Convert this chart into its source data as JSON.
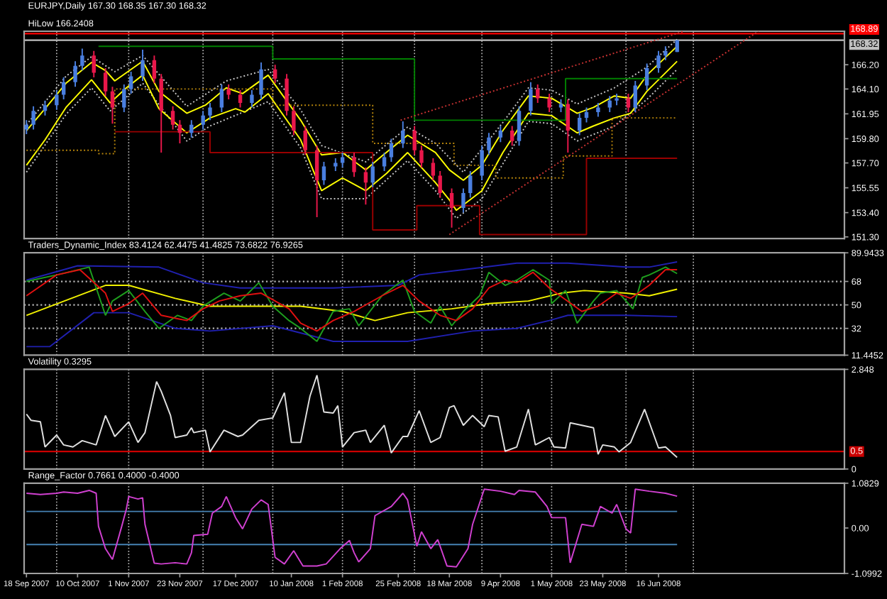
{
  "chart_data": [
    {
      "type": "candlestick",
      "title": "EURJPY,Daily 167.30 168.35 167.30 168.32",
      "subtitle": "HiLow 166.2408",
      "x": [
        "2007-09-18",
        "2007-09-21",
        "2007-09-26",
        "2007-10-01",
        "2007-10-04",
        "2007-10-09",
        "2007-10-12",
        "2007-10-17",
        "2007-10-22",
        "2007-10-25",
        "2007-10-30",
        "2007-11-02",
        "2007-11-07",
        "2007-11-12",
        "2007-11-15",
        "2007-11-20",
        "2007-11-23",
        "2007-11-28",
        "2007-12-03",
        "2007-12-06",
        "2007-12-11",
        "2007-12-14",
        "2007-12-19",
        "2007-12-24",
        "2007-12-28",
        "2008-01-03",
        "2008-01-08",
        "2008-01-11",
        "2008-01-16",
        "2008-01-21",
        "2008-01-24",
        "2008-01-29",
        "2008-02-01",
        "2008-02-06",
        "2008-02-11",
        "2008-02-14",
        "2008-02-19",
        "2008-02-22",
        "2008-02-27",
        "2008-03-03",
        "2008-03-06",
        "2008-03-11",
        "2008-03-14",
        "2008-03-19",
        "2008-03-24",
        "2008-03-27",
        "2008-04-01",
        "2008-04-04",
        "2008-04-09",
        "2008-04-14",
        "2008-04-17",
        "2008-04-22",
        "2008-04-25",
        "2008-04-30",
        "2008-05-05",
        "2008-05-08",
        "2008-05-13",
        "2008-05-16",
        "2008-05-21",
        "2008-05-26",
        "2008-05-29",
        "2008-06-03",
        "2008-06-06",
        "2008-06-11",
        "2008-06-16",
        "2008-06-19",
        "2008-06-24"
      ],
      "ohlc": [
        [
          160.6,
          161.4,
          160.2,
          161.0
        ],
        [
          161.0,
          162.6,
          160.6,
          162.2
        ],
        [
          162.2,
          163.1,
          161.8,
          162.7
        ],
        [
          162.7,
          164.0,
          162.3,
          163.6
        ],
        [
          163.6,
          165.1,
          163.2,
          164.7
        ],
        [
          164.7,
          166.5,
          164.3,
          166.1
        ],
        [
          166.1,
          167.6,
          165.7,
          167.0
        ],
        [
          167.0,
          167.4,
          165.1,
          165.5
        ],
        [
          165.5,
          165.9,
          163.5,
          163.9
        ],
        [
          163.9,
          164.3,
          161.1,
          162.5
        ],
        [
          162.5,
          164.5,
          162.1,
          164.1
        ],
        [
          164.1,
          165.6,
          163.7,
          165.2
        ],
        [
          165.2,
          167.5,
          164.8,
          166.6
        ],
        [
          166.6,
          167.0,
          164.6,
          165.0
        ],
        [
          165.0,
          165.4,
          158.6,
          162.2
        ],
        [
          162.2,
          162.6,
          160.6,
          161.0
        ],
        [
          161.0,
          161.4,
          159.4,
          160.3
        ],
        [
          160.3,
          161.4,
          159.9,
          161.0
        ],
        [
          161.0,
          162.2,
          160.6,
          161.8
        ],
        [
          161.8,
          162.9,
          161.4,
          162.5
        ],
        [
          162.5,
          164.5,
          162.1,
          164.1
        ],
        [
          164.1,
          164.5,
          163.2,
          163.6
        ],
        [
          163.6,
          164.0,
          162.5,
          162.9
        ],
        [
          162.9,
          164.0,
          162.5,
          163.6
        ],
        [
          163.6,
          166.4,
          163.2,
          165.8
        ],
        [
          165.8,
          166.2,
          164.6,
          165.0
        ],
        [
          165.0,
          165.4,
          161.8,
          162.2
        ],
        [
          162.2,
          162.6,
          160.1,
          160.5
        ],
        [
          160.5,
          160.9,
          158.4,
          158.8
        ],
        [
          158.8,
          159.2,
          153.0,
          156.2
        ],
        [
          156.2,
          157.8,
          155.8,
          157.4
        ],
        [
          157.4,
          158.1,
          157.0,
          157.7
        ],
        [
          157.7,
          158.6,
          157.3,
          158.2
        ],
        [
          158.2,
          158.6,
          156.5,
          156.9
        ],
        [
          156.9,
          157.3,
          154.1,
          156.0
        ],
        [
          156.0,
          157.8,
          155.6,
          157.4
        ],
        [
          157.4,
          158.6,
          157.0,
          158.2
        ],
        [
          158.2,
          159.8,
          157.8,
          159.4
        ],
        [
          159.4,
          161.3,
          159.0,
          160.5
        ],
        [
          160.5,
          160.9,
          158.4,
          158.8
        ],
        [
          158.8,
          159.2,
          157.3,
          157.7
        ],
        [
          157.7,
          158.1,
          156.2,
          156.6
        ],
        [
          156.6,
          157.0,
          154.7,
          155.1
        ],
        [
          155.1,
          155.5,
          152.1,
          153.8
        ],
        [
          153.8,
          155.5,
          153.4,
          155.1
        ],
        [
          155.1,
          157.0,
          154.7,
          156.6
        ],
        [
          156.6,
          159.2,
          156.2,
          158.8
        ],
        [
          158.8,
          160.3,
          158.4,
          159.9
        ],
        [
          159.9,
          160.9,
          159.5,
          160.5
        ],
        [
          160.5,
          160.9,
          159.2,
          159.6
        ],
        [
          159.6,
          162.6,
          159.2,
          162.2
        ],
        [
          162.2,
          164.7,
          161.8,
          164.1
        ],
        [
          164.1,
          164.5,
          162.9,
          163.3
        ],
        [
          163.3,
          163.7,
          162.1,
          162.5
        ],
        [
          162.5,
          163.2,
          162.1,
          162.8
        ],
        [
          162.8,
          163.2,
          158.6,
          160.5
        ],
        [
          160.5,
          162.0,
          160.1,
          161.6
        ],
        [
          161.6,
          162.5,
          161.2,
          162.1
        ],
        [
          162.1,
          162.9,
          161.7,
          162.5
        ],
        [
          162.5,
          163.5,
          162.1,
          163.1
        ],
        [
          163.1,
          163.7,
          162.7,
          163.3
        ],
        [
          163.3,
          163.7,
          162.1,
          162.5
        ],
        [
          162.5,
          164.8,
          162.1,
          164.4
        ],
        [
          164.4,
          166.3,
          164.0,
          165.9
        ],
        [
          165.9,
          167.4,
          165.5,
          167.0
        ],
        [
          167.0,
          167.8,
          166.6,
          167.4
        ],
        [
          167.3,
          168.35,
          167.3,
          168.32
        ]
      ],
      "colors": [
        "#4a7fe0",
        "#4a7fe0",
        "#4a7fe0",
        "#4a7fe0",
        "#4a7fe0",
        "#4a7fe0",
        "#4a7fe0",
        "#e8174a",
        "#e8174a",
        "#e8174a",
        "#4a7fe0",
        "#4a7fe0",
        "#4a7fe0",
        "#e8174a",
        "#e8174a",
        "#e8174a",
        "#e8174a",
        "#4a7fe0",
        "#4a7fe0",
        "#4a7fe0",
        "#4a7fe0",
        "#e8174a",
        "#e8174a",
        "#4a7fe0",
        "#4a7fe0",
        "#e8174a",
        "#e8174a",
        "#e8174a",
        "#e8174a",
        "#e8174a",
        "#4a7fe0",
        "#4a7fe0",
        "#4a7fe0",
        "#e8174a",
        "#e8174a",
        "#4a7fe0",
        "#4a7fe0",
        "#4a7fe0",
        "#4a7fe0",
        "#e8174a",
        "#e8174a",
        "#e8174a",
        "#e8174a",
        "#e8174a",
        "#4a7fe0",
        "#4a7fe0",
        "#4a7fe0",
        "#4a7fe0",
        "#4a7fe0",
        "#e8174a",
        "#4a7fe0",
        "#4a7fe0",
        "#e8174a",
        "#e8174a",
        "#4a7fe0",
        "#e8174a",
        "#4a7fe0",
        "#4a7fe0",
        "#4a7fe0",
        "#4a7fe0",
        "#4a7fe0",
        "#e8174a",
        "#4a7fe0",
        "#4a7fe0",
        "#4a7fe0",
        "#4a7fe0",
        "#4a7fe0"
      ],
      "series": [
        {
          "type": "line",
          "color": "#c8c8c8",
          "line_style": "dotted",
          "x": [
            "2007-09-18",
            "2007-10-05",
            "2007-10-16",
            "2007-10-26",
            "2007-11-07",
            "2007-11-26",
            "2007-12-13",
            "2007-12-31",
            "2008-01-14",
            "2008-01-23",
            "2008-02-11",
            "2008-02-29",
            "2008-03-12",
            "2008-03-24",
            "2008-04-10",
            "2008-04-21",
            "2008-05-01",
            "2008-05-12",
            "2008-05-28",
            "2008-06-11",
            "2008-06-24"
          ],
          "values": [
            161.0,
            165.2,
            166.9,
            165.6,
            167.0,
            162.6,
            164.8,
            165.8,
            162.3,
            159.2,
            157.8,
            160.8,
            159.4,
            156.9,
            161.2,
            164.2,
            164.0,
            162.8,
            164.2,
            166.0,
            168.4
          ]
        },
        {
          "type": "line",
          "color": "#c8c8c8",
          "line_style": "dotted",
          "x": [
            "2007-09-18",
            "2007-10-05",
            "2007-10-16",
            "2007-10-24",
            "2007-11-07",
            "2007-11-26",
            "2007-12-06",
            "2007-12-31",
            "2008-01-14",
            "2008-01-23",
            "2008-02-11",
            "2008-02-29",
            "2008-03-12",
            "2008-03-21",
            "2008-04-01",
            "2008-04-21",
            "2008-05-01",
            "2008-05-12",
            "2008-05-28",
            "2008-06-11",
            "2008-06-24"
          ],
          "values": [
            156.9,
            161.9,
            164.2,
            162.2,
            164.6,
            159.6,
            160.9,
            163.0,
            159.0,
            154.6,
            154.6,
            157.9,
            155.3,
            152.9,
            154.6,
            161.3,
            161.1,
            159.6,
            160.9,
            163.2,
            165.8
          ]
        },
        {
          "type": "line",
          "color": "#ffff00",
          "x": [
            "2007-09-18",
            "2007-09-26",
            "2007-10-05",
            "2007-10-16",
            "2007-10-22",
            "2007-10-26",
            "2007-11-07",
            "2007-11-14",
            "2007-11-26",
            "2007-12-04",
            "2007-12-13",
            "2007-12-20",
            "2007-12-31",
            "2008-01-14",
            "2008-01-23",
            "2008-02-01",
            "2008-02-11",
            "2008-02-18",
            "2008-02-29",
            "2008-03-12",
            "2008-03-18",
            "2008-03-24",
            "2008-04-01",
            "2008-04-10",
            "2008-04-21",
            "2008-05-01",
            "2008-05-12",
            "2008-05-19",
            "2008-05-28",
            "2008-06-04",
            "2008-06-11",
            "2008-06-24"
          ],
          "values": [
            160.5,
            162.4,
            164.6,
            166.4,
            165.7,
            164.8,
            166.5,
            163.9,
            162.0,
            162.7,
            164.2,
            163.7,
            165.3,
            161.4,
            158.4,
            158.6,
            157.1,
            158.3,
            160.1,
            158.6,
            157.1,
            156.2,
            157.5,
            160.5,
            163.5,
            163.3,
            162.0,
            162.5,
            163.5,
            163.3,
            165.3,
            167.8
          ]
        },
        {
          "type": "line",
          "color": "#ffff00",
          "x": [
            "2007-09-18",
            "2007-09-26",
            "2007-10-05",
            "2007-10-16",
            "2007-10-24",
            "2007-10-31",
            "2007-11-07",
            "2007-11-14",
            "2007-11-26",
            "2007-12-06",
            "2007-12-17",
            "2007-12-21",
            "2007-12-31",
            "2008-01-14",
            "2008-01-23",
            "2008-02-01",
            "2008-02-11",
            "2008-02-20",
            "2008-02-29",
            "2008-03-12",
            "2008-03-18",
            "2008-03-21",
            "2008-04-01",
            "2008-04-10",
            "2008-04-21",
            "2008-05-01",
            "2008-05-12",
            "2008-05-19",
            "2008-05-28",
            "2008-06-04",
            "2008-06-11",
            "2008-06-24"
          ],
          "values": [
            157.5,
            159.7,
            162.5,
            164.9,
            162.9,
            164.2,
            165.3,
            162.4,
            160.3,
            161.6,
            162.4,
            162.1,
            163.7,
            159.7,
            155.3,
            156.4,
            155.3,
            156.8,
            158.6,
            156.0,
            154.5,
            153.6,
            155.3,
            158.6,
            162.0,
            161.8,
            160.3,
            160.9,
            161.6,
            162.0,
            163.9,
            166.5
          ]
        },
        {
          "type": "step",
          "color": "#008000",
          "x": [
            "2007-10-19",
            "2008-01-02",
            "2008-03-03",
            "2008-05-07",
            "2008-06-24"
          ],
          "values": [
            167.8,
            166.7,
            161.4,
            165.0,
            165.0
          ]
        },
        {
          "type": "step",
          "color": "#990000",
          "x": [
            "2007-10-26",
            "2007-12-06",
            "2008-02-14",
            "2008-03-04",
            "2008-03-31",
            "2008-05-16",
            "2008-06-24"
          ],
          "values": [
            160.4,
            158.6,
            151.9,
            154.0,
            151.5,
            158.1,
            158.1
          ]
        },
        {
          "type": "step",
          "color": "#b8860b",
          "line_style": "dotted",
          "x": [
            "2007-09-18",
            "2007-10-19",
            "2007-10-26",
            "2008-01-02",
            "2008-02-14",
            "2008-03-20",
            "2008-04-07",
            "2008-05-06",
            "2008-05-27",
            "2008-06-24"
          ],
          "values": [
            158.8,
            158.5,
            164.1,
            162.7,
            159.4,
            157.5,
            156.4,
            158.3,
            161.6,
            161.6
          ]
        },
        {
          "type": "line",
          "color": "#cc3333",
          "line_style": "dotted",
          "x": [
            "2008-02-26",
            "2008-06-27"
          ],
          "values": [
            161.4,
            169.1
          ]
        },
        {
          "type": "line",
          "color": "#cc3333",
          "line_style": "dotted",
          "x": [
            "2008-03-18",
            "2008-07-29"
          ],
          "values": [
            151.5,
            169.1
          ]
        }
      ],
      "xlim": [
        "2007-09-17",
        "2008-09-04"
      ],
      "ylim": [
        151.15,
        169.1
      ],
      "yticks": [
        {
          "value": 166.2,
          "label": "166.20"
        },
        {
          "value": 164.1,
          "label": "164.10"
        },
        161.95,
        {
          "value": 159.8,
          "label": "159.80"
        },
        {
          "value": 157.7,
          "label": "157.70"
        },
        155.55,
        {
          "value": 153.4,
          "label": "153.40"
        },
        {
          "value": 151.3,
          "label": "151.30"
        }
      ],
      "tick_labels": "y",
      "ref_lines": [
        {
          "axis": "y",
          "value": 168.89,
          "label": "168.89",
          "color": "#ff0000"
        },
        {
          "axis": "y",
          "value": 168.32,
          "label": "168.32",
          "color": "#c0c0c0"
        },
        {
          "axis": "x",
          "value": "2007-10-01",
          "color": "#b4b4b4",
          "line_style": "dotted"
        },
        {
          "axis": "x",
          "value": "2007-11-01",
          "color": "#b4b4b4",
          "line_style": "dotted"
        },
        {
          "axis": "x",
          "value": "2007-12-03",
          "color": "#b4b4b4",
          "line_style": "dotted"
        },
        {
          "axis": "x",
          "value": "2008-01-02",
          "color": "#b4b4b4",
          "line_style": "dotted"
        },
        {
          "axis": "x",
          "value": "2008-02-01",
          "color": "#b4b4b4",
          "line_style": "dotted"
        },
        {
          "axis": "x",
          "value": "2008-03-03",
          "color": "#b4b4b4",
          "line_style": "dotted"
        },
        {
          "axis": "x",
          "value": "2008-04-01",
          "color": "#b4b4b4",
          "line_style": "dotted"
        },
        {
          "axis": "x",
          "value": "2008-05-01",
          "color": "#b4b4b4",
          "line_style": "dotted"
        },
        {
          "axis": "x",
          "value": "2008-06-02",
          "color": "#b4b4b4",
          "line_style": "dotted"
        },
        {
          "axis": "x",
          "value": "2008-07-01",
          "color": "#b4b4b4",
          "line_style": "dotted"
        }
      ]
    },
    {
      "type": "line",
      "title": "Traders_Dynamic_Index 83.4124 62.4475 41.4825 73.6822 76.9265",
      "series": [
        {
          "color": "#2020b0",
          "x": [
            "2007-09-18",
            "2007-10-10",
            "2007-11-14",
            "2007-12-03",
            "2007-12-19",
            "2008-01-28",
            "2008-02-25",
            "2008-03-05",
            "2008-03-24",
            "2008-04-16",
            "2008-05-08",
            "2008-06-02",
            "2008-06-12",
            "2008-06-24"
          ],
          "values": [
            69,
            80,
            79,
            67,
            63,
            63,
            65,
            73,
            77,
            82,
            82,
            79,
            79,
            83
          ]
        },
        {
          "color": "#2020b0",
          "x": [
            "2007-09-18",
            "2007-09-28",
            "2007-10-17",
            "2007-11-01",
            "2007-11-21",
            "2007-12-06",
            "2008-01-02",
            "2008-01-28",
            "2008-02-29",
            "2008-03-28",
            "2008-04-16",
            "2008-04-30",
            "2008-05-08",
            "2008-06-02",
            "2008-06-24"
          ],
          "values": [
            18,
            18,
            44,
            44,
            32,
            30,
            34,
            22,
            22,
            30,
            32,
            38,
            42,
            42,
            41
          ]
        },
        {
          "color": "#f0f000",
          "x": [
            "2007-09-18",
            "2007-10-22",
            "2007-11-01",
            "2007-11-21",
            "2007-12-06",
            "2008-01-02",
            "2008-01-14",
            "2008-02-01",
            "2008-02-15",
            "2008-02-29",
            "2008-03-19",
            "2008-04-04",
            "2008-04-21",
            "2008-05-05",
            "2008-05-15",
            "2008-06-02",
            "2008-06-12",
            "2008-06-24"
          ],
          "values": [
            42,
            65,
            65,
            55,
            49,
            49,
            49,
            45,
            38,
            44,
            47,
            51,
            53,
            59,
            61,
            59,
            57,
            62
          ]
        },
        {
          "color": "#1e9e1e",
          "x": [
            "2007-09-18",
            "2007-10-01",
            "2007-10-15",
            "2007-10-22",
            "2007-10-25",
            "2007-11-01",
            "2007-11-08",
            "2007-11-14",
            "2007-11-22",
            "2007-11-28",
            "2007-12-03",
            "2007-12-12",
            "2007-12-19",
            "2007-12-27",
            "2008-01-02",
            "2008-01-09",
            "2008-01-14",
            "2008-01-21",
            "2008-01-28",
            "2008-02-04",
            "2008-02-08",
            "2008-02-18",
            "2008-02-27",
            "2008-03-03",
            "2008-03-10",
            "2008-03-14",
            "2008-03-19",
            "2008-03-24",
            "2008-03-31",
            "2008-04-04",
            "2008-04-11",
            "2008-04-16",
            "2008-04-23",
            "2008-04-30",
            "2008-05-01",
            "2008-05-07",
            "2008-05-12",
            "2008-05-19",
            "2008-05-22",
            "2008-05-29",
            "2008-06-05",
            "2008-06-09",
            "2008-06-12",
            "2008-06-19",
            "2008-06-24"
          ],
          "values": [
            68,
            73,
            79,
            42,
            53,
            61,
            45,
            32,
            42,
            38,
            49,
            59,
            53,
            67,
            49,
            38,
            32,
            22,
            45,
            47,
            34,
            57,
            69,
            45,
            36,
            49,
            34,
            45,
            57,
            75,
            65,
            69,
            77,
            69,
            51,
            61,
            36,
            53,
            59,
            61,
            47,
            71,
            73,
            79,
            74
          ]
        },
        {
          "color": "#e01010",
          "x": [
            "2007-09-18",
            "2007-10-01",
            "2007-10-11",
            "2007-10-22",
            "2007-10-25",
            "2007-11-01",
            "2007-11-07",
            "2007-11-15",
            "2007-11-26",
            "2007-12-03",
            "2007-12-10",
            "2007-12-19",
            "2007-12-28",
            "2008-01-09",
            "2008-01-14",
            "2008-01-21",
            "2008-01-28",
            "2008-02-06",
            "2008-02-18",
            "2008-02-27",
            "2008-03-05",
            "2008-03-14",
            "2008-03-21",
            "2008-03-28",
            "2008-04-04",
            "2008-04-11",
            "2008-04-16",
            "2008-04-23",
            "2008-04-30",
            "2008-05-14",
            "2008-05-21",
            "2008-05-29",
            "2008-06-04",
            "2008-06-12",
            "2008-06-19",
            "2008-06-24"
          ],
          "values": [
            57,
            73,
            77,
            59,
            45,
            51,
            59,
            42,
            38,
            47,
            53,
            57,
            59,
            47,
            36,
            30,
            38,
            45,
            57,
            65,
            53,
            42,
            38,
            47,
            63,
            69,
            67,
            75,
            63,
            45,
            49,
            59,
            55,
            65,
            77,
            77
          ]
        }
      ],
      "xlim": [
        "2007-09-17",
        "2008-09-04"
      ],
      "ylim": [
        11.4452,
        89.9433
      ],
      "yticks": [
        89.9433,
        68,
        50,
        32,
        11.4452
      ],
      "tick_labels": "y",
      "ref_lines": [
        {
          "axis": "y",
          "value": 68,
          "color": "#b4b4b4",
          "line_style": "dotted"
        },
        {
          "axis": "y",
          "value": 50,
          "color": "#b4b4b4",
          "line_style": "dotted"
        },
        {
          "axis": "y",
          "value": 32,
          "color": "#b4b4b4",
          "line_style": "dotted"
        },
        {
          "axis": "x",
          "value": "2007-10-01",
          "color": "#b4b4b4",
          "line_style": "dotted"
        },
        {
          "axis": "x",
          "value": "2007-11-01",
          "color": "#b4b4b4",
          "line_style": "dotted"
        },
        {
          "axis": "x",
          "value": "2007-12-03",
          "color": "#b4b4b4",
          "line_style": "dotted"
        },
        {
          "axis": "x",
          "value": "2008-01-02",
          "color": "#b4b4b4",
          "line_style": "dotted"
        },
        {
          "axis": "x",
          "value": "2008-02-01",
          "color": "#b4b4b4",
          "line_style": "dotted"
        },
        {
          "axis": "x",
          "value": "2008-03-03",
          "color": "#b4b4b4",
          "line_style": "dotted"
        },
        {
          "axis": "x",
          "value": "2008-04-01",
          "color": "#b4b4b4",
          "line_style": "dotted"
        },
        {
          "axis": "x",
          "value": "2008-05-01",
          "color": "#b4b4b4",
          "line_style": "dotted"
        },
        {
          "axis": "x",
          "value": "2008-06-02",
          "color": "#b4b4b4",
          "line_style": "dotted"
        },
        {
          "axis": "x",
          "value": "2008-07-01",
          "color": "#b4b4b4",
          "line_style": "dotted"
        }
      ]
    },
    {
      "type": "line",
      "title": "Volatility 0.3295",
      "series": [
        {
          "color": "#e0e0e0",
          "x": [
            "2007-09-18",
            "2007-09-20",
            "2007-09-24",
            "2007-09-26",
            "2007-10-01",
            "2007-10-04",
            "2007-10-08",
            "2007-10-12",
            "2007-10-18",
            "2007-10-22",
            "2007-10-26",
            "2007-11-01",
            "2007-11-05",
            "2007-11-08",
            "2007-11-13",
            "2007-11-15",
            "2007-11-19",
            "2007-11-21",
            "2007-11-26",
            "2007-11-28",
            "2007-11-29",
            "2007-12-04",
            "2007-12-06",
            "2007-12-12",
            "2007-12-18",
            "2007-12-20",
            "2007-12-27",
            "2008-01-02",
            "2008-01-07",
            "2008-01-10",
            "2008-01-14",
            "2008-01-18",
            "2008-01-21",
            "2008-01-24",
            "2008-01-28",
            "2008-01-30",
            "2008-02-01",
            "2008-02-06",
            "2008-02-11",
            "2008-02-13",
            "2008-02-19",
            "2008-02-22",
            "2008-02-27",
            "2008-02-29",
            "2008-03-05",
            "2008-03-10",
            "2008-03-14",
            "2008-03-18",
            "2008-03-20",
            "2008-03-24",
            "2008-03-28",
            "2008-04-02",
            "2008-04-04",
            "2008-04-08",
            "2008-04-11",
            "2008-04-16",
            "2008-04-21",
            "2008-04-24",
            "2008-04-30",
            "2008-05-02",
            "2008-05-07",
            "2008-05-09",
            "2008-05-14",
            "2008-05-19",
            "2008-05-21",
            "2008-05-23",
            "2008-05-28",
            "2008-05-30",
            "2008-06-04",
            "2008-06-10",
            "2008-06-16",
            "2008-06-19",
            "2008-06-24"
          ],
          "values": [
            1.57,
            1.39,
            1.35,
            0.63,
            0.97,
            0.69,
            0.63,
            0.81,
            0.69,
            1.53,
            0.93,
            1.35,
            0.76,
            1.04,
            2.5,
            2.22,
            1.53,
            0.9,
            0.97,
            1.18,
            1.04,
            1.11,
            0.49,
            1.11,
            0.93,
            0.97,
            1.39,
            1.46,
            2.18,
            0.76,
            0.76,
            2.08,
            2.68,
            1.63,
            1.6,
            1.81,
            0.63,
            1.04,
            1.11,
            0.76,
            1.25,
            0.46,
            0.93,
            0.93,
            1.67,
            0.76,
            0.9,
            1.76,
            1.81,
            1.25,
            1.53,
            1.21,
            1.53,
            1.49,
            0.51,
            0.63,
            1.71,
            0.69,
            0.9,
            0.63,
            0.6,
            1.32,
            1.25,
            1.18,
            0.42,
            0.69,
            0.63,
            0.49,
            0.76,
            1.71,
            0.6,
            0.63,
            0.33
          ]
        }
      ],
      "xlim": [
        "2007-09-17",
        "2008-09-04"
      ],
      "ylim": [
        0,
        2.848
      ],
      "yticks": [
        2.848,
        0
      ],
      "tick_labels": "y",
      "ref_lines": [
        {
          "axis": "y",
          "value": 0.5,
          "label": "0.5",
          "color": "#cc0000"
        },
        {
          "axis": "x",
          "value": "2007-10-01",
          "color": "#b4b4b4",
          "line_style": "dotted"
        },
        {
          "axis": "x",
          "value": "2007-11-01",
          "color": "#b4b4b4",
          "line_style": "dotted"
        },
        {
          "axis": "x",
          "value": "2007-12-03",
          "color": "#b4b4b4",
          "line_style": "dotted"
        },
        {
          "axis": "x",
          "value": "2008-01-02",
          "color": "#b4b4b4",
          "line_style": "dotted"
        },
        {
          "axis": "x",
          "value": "2008-02-01",
          "color": "#b4b4b4",
          "line_style": "dotted"
        },
        {
          "axis": "x",
          "value": "2008-03-03",
          "color": "#b4b4b4",
          "line_style": "dotted"
        },
        {
          "axis": "x",
          "value": "2008-04-01",
          "color": "#b4b4b4",
          "line_style": "dotted"
        },
        {
          "axis": "x",
          "value": "2008-05-01",
          "color": "#b4b4b4",
          "line_style": "dotted"
        },
        {
          "axis": "x",
          "value": "2008-06-02",
          "color": "#b4b4b4",
          "line_style": "dotted"
        },
        {
          "axis": "x",
          "value": "2008-07-01",
          "color": "#b4b4b4",
          "line_style": "dotted"
        }
      ]
    },
    {
      "type": "line",
      "title": "Range_Factor 0.7661 0.4000 -0.4000",
      "series": [
        {
          "color": "#4682b4",
          "x": [
            "2007-09-18",
            "2008-06-24"
          ],
          "values": [
            0.4,
            0.4
          ]
        },
        {
          "color": "#4682b4",
          "x": [
            "2007-09-18",
            "2008-06-24"
          ],
          "values": [
            -0.4,
            -0.4
          ]
        },
        {
          "color": "#d040d0",
          "x": [
            "2007-09-18",
            "2007-09-24",
            "2007-10-01",
            "2007-10-04",
            "2007-10-10",
            "2007-10-15",
            "2007-10-18",
            "2007-10-19",
            "2007-10-22",
            "2007-10-25",
            "2007-10-29",
            "2007-10-31",
            "2007-11-01",
            "2007-11-05",
            "2007-11-07",
            "2007-11-08",
            "2007-11-12",
            "2007-11-15",
            "2007-11-21",
            "2007-11-26",
            "2007-11-28",
            "2007-11-29",
            "2007-12-05",
            "2007-12-07",
            "2007-12-11",
            "2007-12-13",
            "2007-12-17",
            "2007-12-20",
            "2007-12-24",
            "2007-12-28",
            "2007-12-31",
            "2008-01-03",
            "2008-01-07",
            "2008-01-11",
            "2008-01-15",
            "2008-01-21",
            "2008-01-25",
            "2008-01-31",
            "2008-02-04",
            "2008-02-06",
            "2008-02-08",
            "2008-02-13",
            "2008-02-15",
            "2008-02-22",
            "2008-02-27",
            "2008-02-29",
            "2008-03-04",
            "2008-03-06",
            "2008-03-10",
            "2008-03-13",
            "2008-03-17",
            "2008-03-21",
            "2008-03-26",
            "2008-03-28",
            "2008-04-02",
            "2008-04-09",
            "2008-04-15",
            "2008-04-17",
            "2008-04-24",
            "2008-04-29",
            "2008-05-01",
            "2008-05-07",
            "2008-05-09",
            "2008-05-14",
            "2008-05-19",
            "2008-05-22",
            "2008-05-27",
            "2008-05-29",
            "2008-06-02",
            "2008-06-04",
            "2008-06-06",
            "2008-06-12",
            "2008-06-19",
            "2008-06-24"
          ],
          "values": [
            0.84,
            0.81,
            0.84,
            0.87,
            0.84,
            0.91,
            0.84,
            0.04,
            -0.5,
            -0.76,
            0.04,
            0.46,
            0.76,
            0.7,
            0.73,
            0.09,
            -0.85,
            -0.87,
            -0.84,
            -0.87,
            -0.6,
            -0.18,
            -0.15,
            0.36,
            0.52,
            0.76,
            0.25,
            -0.02,
            0.46,
            0.68,
            0.57,
            -0.71,
            -0.87,
            -0.55,
            -0.92,
            -0.92,
            -0.87,
            -0.5,
            -0.3,
            -0.6,
            -0.82,
            -0.5,
            0.3,
            0.52,
            0.84,
            0.68,
            -0.44,
            -0.09,
            -0.5,
            -0.28,
            -0.92,
            -0.94,
            -0.5,
            0.09,
            0.94,
            0.89,
            0.81,
            0.91,
            0.87,
            0.52,
            0.25,
            0.25,
            -0.84,
            0.09,
            0.04,
            0.52,
            0.36,
            0.57,
            -0.02,
            -0.12,
            0.94,
            0.89,
            0.84,
            0.77
          ]
        }
      ],
      "xlim": [
        "2007-09-17",
        "2008-09-04"
      ],
      "ylim": [
        -1.0992,
        1.0829
      ],
      "xticks": [
        {
          "value": "2007-09-18",
          "label": "18 Sep 2007"
        },
        {
          "value": "2007-10-10",
          "label": "10 Oct 2007"
        },
        {
          "value": "2007-11-01",
          "label": "1 Nov 2007"
        },
        {
          "value": "2007-11-23",
          "label": "23 Nov 2007"
        },
        {
          "value": "2007-12-17",
          "label": "17 Dec 2007"
        },
        {
          "value": "2008-01-10",
          "label": "10 Jan 2008"
        },
        {
          "value": "2008-02-01",
          "label": "1 Feb 2008"
        },
        {
          "value": "2008-02-25",
          "label": "25 Feb 2008"
        },
        {
          "value": "2008-03-18",
          "label": "18 Mar 2008"
        },
        {
          "value": "2008-04-09",
          "label": "9 Apr 2008"
        },
        {
          "value": "2008-05-01",
          "label": "1 May 2008"
        },
        {
          "value": "2008-05-23",
          "label": "23 May 2008"
        },
        {
          "value": "2008-06-16",
          "label": "16 Jun 2008"
        }
      ],
      "yticks": [
        1.0829,
        {
          "value": 0,
          "label": "0.00"
        },
        {
          "value": -1.0992,
          "label": "-1.0992"
        }
      ],
      "ref_lines": [
        {
          "axis": "x",
          "value": "2007-10-01",
          "color": "#b4b4b4",
          "line_style": "dotted"
        },
        {
          "axis": "x",
          "value": "2007-11-01",
          "color": "#b4b4b4",
          "line_style": "dotted"
        },
        {
          "axis": "x",
          "value": "2007-12-03",
          "color": "#b4b4b4",
          "line_style": "dotted"
        },
        {
          "axis": "x",
          "value": "2008-01-02",
          "color": "#b4b4b4",
          "line_style": "dotted"
        },
        {
          "axis": "x",
          "value": "2008-02-01",
          "color": "#b4b4b4",
          "line_style": "dotted"
        },
        {
          "axis": "x",
          "value": "2008-03-03",
          "color": "#b4b4b4",
          "line_style": "dotted"
        },
        {
          "axis": "x",
          "value": "2008-04-01",
          "color": "#b4b4b4",
          "line_style": "dotted"
        },
        {
          "axis": "x",
          "value": "2008-05-01",
          "color": "#b4b4b4",
          "line_style": "dotted"
        },
        {
          "axis": "x",
          "value": "2008-06-02",
          "color": "#b4b4b4",
          "line_style": "dotted"
        },
        {
          "axis": "x",
          "value": "2008-07-01",
          "color": "#b4b4b4",
          "line_style": "dotted"
        }
      ]
    }
  ]
}
